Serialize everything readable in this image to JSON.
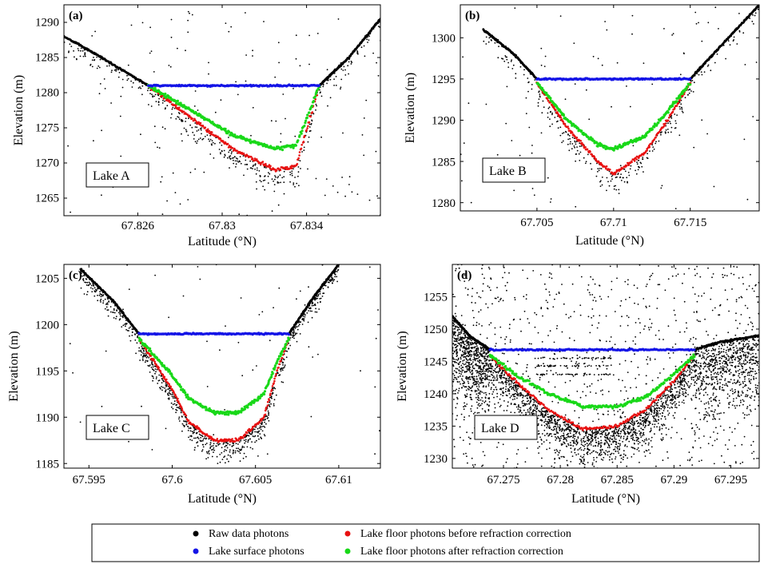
{
  "chart_data": [
    {
      "type": "scatter",
      "panel": "(a)",
      "lake_label": "Lake A",
      "xlabel": "Latitude (°N)",
      "ylabel": "Elevation (m)",
      "xlim": [
        67.8225,
        67.8375
      ],
      "ylim": [
        1262.5,
        1292.5
      ],
      "xticks": [
        67.826,
        67.83,
        67.834
      ],
      "xtick_labels": [
        "67.826",
        "67.83",
        "67.834"
      ],
      "yticks": [
        1265,
        1270,
        1275,
        1280,
        1285,
        1290
      ],
      "surface_elevation": 1281,
      "lake_edges": [
        67.8265,
        67.8346
      ],
      "bank_left": [
        [
          67.8225,
          1288
        ],
        [
          67.824,
          1285.5
        ],
        [
          67.8265,
          1281
        ]
      ],
      "bank_right": [
        [
          67.8346,
          1281
        ],
        [
          67.836,
          1285
        ],
        [
          67.8375,
          1290.5
        ]
      ],
      "floor_before": [
        [
          67.8265,
          1281
        ],
        [
          67.8285,
          1276.5
        ],
        [
          67.8305,
          1272
        ],
        [
          67.8325,
          1269
        ],
        [
          67.8335,
          1269.5
        ],
        [
          67.8346,
          1281
        ]
      ],
      "floor_after": [
        [
          67.8265,
          1281
        ],
        [
          67.8285,
          1277.5
        ],
        [
          67.8305,
          1274
        ],
        [
          67.8325,
          1272
        ],
        [
          67.8335,
          1272.5
        ],
        [
          67.8346,
          1281
        ]
      ],
      "noise_count": 150
    },
    {
      "type": "scatter",
      "panel": "(b)",
      "lake_label": "Lake B",
      "xlabel": "Latitude (°N)",
      "ylabel": "Elevation (m)",
      "xlim": [
        67.7,
        67.7195
      ],
      "ylim": [
        1279,
        1304
      ],
      "xticks": [
        67.705,
        67.71,
        67.715
      ],
      "xtick_labels": [
        "67.705",
        "67.71",
        "67.715"
      ],
      "yticks": [
        1280,
        1285,
        1290,
        1295,
        1300
      ],
      "surface_elevation": 1295,
      "lake_edges": [
        67.705,
        67.715
      ],
      "bank_left": [
        [
          67.7015,
          1301
        ],
        [
          67.7035,
          1298
        ],
        [
          67.705,
          1295
        ]
      ],
      "bank_right": [
        [
          67.715,
          1295
        ],
        [
          67.717,
          1299
        ],
        [
          67.7195,
          1304
        ]
      ],
      "floor_before": [
        [
          67.705,
          1294.5
        ],
        [
          67.707,
          1289
        ],
        [
          67.709,
          1285
        ],
        [
          67.71,
          1283.5
        ],
        [
          67.712,
          1286
        ],
        [
          67.7135,
          1290
        ],
        [
          67.715,
          1294.5
        ]
      ],
      "floor_after": [
        [
          67.705,
          1294.5
        ],
        [
          67.707,
          1290
        ],
        [
          67.709,
          1287
        ],
        [
          67.71,
          1286.5
        ],
        [
          67.712,
          1288
        ],
        [
          67.7135,
          1291
        ],
        [
          67.715,
          1294.5
        ]
      ],
      "noise_count": 100
    },
    {
      "type": "scatter",
      "panel": "(c)",
      "lake_label": "Lake C",
      "xlabel": "Latitude (°N)",
      "ylabel": "Elevation (m)",
      "xlim": [
        67.5935,
        67.6125
      ],
      "ylim": [
        1184.5,
        1206.5
      ],
      "xticks": [
        67.595,
        67.6,
        67.605,
        67.61
      ],
      "xtick_labels": [
        "67.595",
        "67.6",
        "67.605",
        "67.61"
      ],
      "yticks": [
        1185,
        1190,
        1195,
        1200,
        1205
      ],
      "surface_elevation": 1199,
      "lake_edges": [
        67.598,
        67.607
      ],
      "bank_left": [
        [
          67.5945,
          1206
        ],
        [
          67.5965,
          1202.5
        ],
        [
          67.598,
          1199
        ]
      ],
      "bank_right": [
        [
          67.607,
          1199
        ],
        [
          67.6085,
          1203
        ],
        [
          67.61,
          1206.5
        ]
      ],
      "floor_before": [
        [
          67.598,
          1198.5
        ],
        [
          67.6,
          1193
        ],
        [
          67.601,
          1189.5
        ],
        [
          67.6025,
          1187.5
        ],
        [
          67.604,
          1187.5
        ],
        [
          67.6055,
          1190
        ],
        [
          67.6063,
          1195
        ],
        [
          67.607,
          1198.5
        ]
      ],
      "floor_after": [
        [
          67.598,
          1198.5
        ],
        [
          67.6,
          1194.5
        ],
        [
          67.601,
          1192
        ],
        [
          67.6025,
          1190.5
        ],
        [
          67.604,
          1190.5
        ],
        [
          67.6055,
          1192.5
        ],
        [
          67.6063,
          1196
        ],
        [
          67.607,
          1198.5
        ]
      ],
      "noise_count": 60
    },
    {
      "type": "scatter",
      "panel": "(d)",
      "lake_label": "Lake D",
      "xlabel": "Latitude (°N)",
      "ylabel": "Elevation (m)",
      "xlim": [
        67.2705,
        67.2975
      ],
      "ylim": [
        1228.5,
        1260
      ],
      "xticks": [
        67.275,
        67.28,
        67.285,
        67.29,
        67.295
      ],
      "xtick_labels": [
        "67.275",
        "67.28",
        "67.285",
        "67.29",
        "67.295"
      ],
      "yticks": [
        1230,
        1235,
        1240,
        1245,
        1250,
        1255
      ],
      "surface_elevation": 1246.8,
      "lake_edges": [
        67.2738,
        67.2918
      ],
      "bank_left": [
        [
          67.2705,
          1252
        ],
        [
          67.272,
          1249
        ],
        [
          67.2738,
          1246.8
        ]
      ],
      "bank_right": [
        [
          67.2918,
          1246.8
        ],
        [
          67.294,
          1248
        ],
        [
          67.2975,
          1249
        ]
      ],
      "floor_before": [
        [
          67.2738,
          1246
        ],
        [
          67.276,
          1242
        ],
        [
          67.279,
          1237.5
        ],
        [
          67.282,
          1234.5
        ],
        [
          67.285,
          1235
        ],
        [
          67.2875,
          1237.5
        ],
        [
          67.29,
          1242
        ],
        [
          67.2918,
          1246
        ]
      ],
      "floor_after": [
        [
          67.2738,
          1246
        ],
        [
          67.276,
          1243
        ],
        [
          67.279,
          1240
        ],
        [
          67.282,
          1238
        ],
        [
          67.285,
          1238
        ],
        [
          67.2875,
          1239.5
        ],
        [
          67.29,
          1243
        ],
        [
          67.2918,
          1246
        ]
      ],
      "noise_count": 900
    }
  ],
  "legend": {
    "items": [
      {
        "label": "Raw data photons",
        "color": "#000000"
      },
      {
        "label": "Lake floor photons before refraction correction",
        "color": "#e81010"
      },
      {
        "label": "Lake surface photons",
        "color": "#1414e6"
      },
      {
        "label": "Lake floor photons after refraction correction",
        "color": "#18d818"
      }
    ]
  }
}
